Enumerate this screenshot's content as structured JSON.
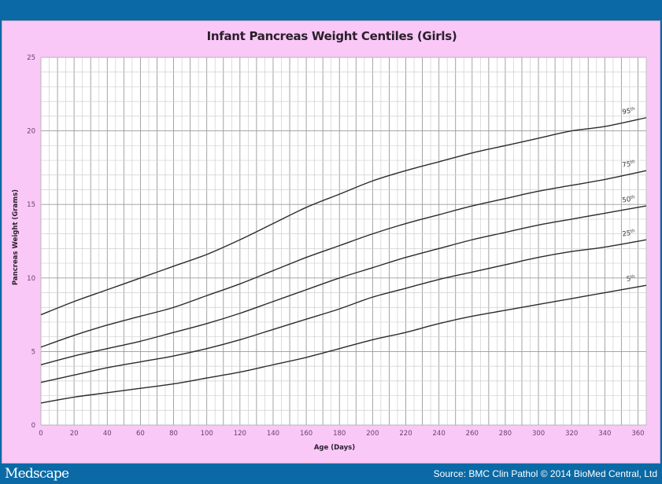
{
  "header": {},
  "footer": {
    "logo": "Medscape",
    "source": "Source: BMC Clin Pathol © 2014 BioMed Central, Ltd"
  },
  "colors": {
    "brand_blue": "#0b6aa6",
    "slide_background": "#f9c8f7",
    "plot_background": "#ffffff",
    "grid_major": "#9a9a9a",
    "grid_minor": "#cfcfcf",
    "curve": "#2b2b2b",
    "tick_label": "#6b3f6b",
    "axis_title": "#2a1f2a"
  },
  "chart_data": {
    "type": "line",
    "title": "Infant Pancreas Weight Centiles (Girls)",
    "xlabel": "Age (Days)",
    "ylabel": "Pancreas Weight (Grams)",
    "xlim": [
      0,
      365
    ],
    "ylim": [
      0,
      25
    ],
    "x_ticks": [
      0,
      20,
      40,
      60,
      80,
      100,
      120,
      140,
      160,
      180,
      200,
      220,
      240,
      260,
      280,
      300,
      320,
      340,
      360
    ],
    "y_ticks": [
      0,
      5,
      10,
      15,
      20,
      25
    ],
    "grid": true,
    "grid_x_minor_step": 5,
    "grid_y_minor_step": 1,
    "legend_position": "inline labels at right end of curves",
    "x": [
      0,
      20,
      40,
      60,
      80,
      100,
      120,
      140,
      160,
      180,
      200,
      220,
      240,
      260,
      280,
      300,
      320,
      340,
      365
    ],
    "series": [
      {
        "name": "95th",
        "label": "95",
        "suffix": "th",
        "values": [
          7.5,
          8.4,
          9.2,
          10.0,
          10.8,
          11.6,
          12.6,
          13.7,
          14.8,
          15.7,
          16.6,
          17.3,
          17.9,
          18.5,
          19.0,
          19.5,
          20.0,
          20.3,
          20.9
        ]
      },
      {
        "name": "75th",
        "label": "75",
        "suffix": "th",
        "values": [
          5.3,
          6.1,
          6.8,
          7.4,
          8.0,
          8.8,
          9.6,
          10.5,
          11.4,
          12.2,
          13.0,
          13.7,
          14.3,
          14.9,
          15.4,
          15.9,
          16.3,
          16.7,
          17.3
        ]
      },
      {
        "name": "50th",
        "label": "50",
        "suffix": "th",
        "values": [
          4.1,
          4.7,
          5.2,
          5.7,
          6.3,
          6.9,
          7.6,
          8.4,
          9.2,
          10.0,
          10.7,
          11.4,
          12.0,
          12.6,
          13.1,
          13.6,
          14.0,
          14.4,
          14.9
        ]
      },
      {
        "name": "25th",
        "label": "25",
        "suffix": "th",
        "values": [
          2.9,
          3.4,
          3.9,
          4.3,
          4.7,
          5.2,
          5.8,
          6.5,
          7.2,
          7.9,
          8.7,
          9.3,
          9.9,
          10.4,
          10.9,
          11.4,
          11.8,
          12.1,
          12.6
        ]
      },
      {
        "name": "5th",
        "label": "5",
        "suffix": "th",
        "values": [
          1.5,
          1.9,
          2.2,
          2.5,
          2.8,
          3.2,
          3.6,
          4.1,
          4.6,
          5.2,
          5.8,
          6.3,
          6.9,
          7.4,
          7.8,
          8.2,
          8.6,
          9.0,
          9.5
        ]
      }
    ]
  }
}
